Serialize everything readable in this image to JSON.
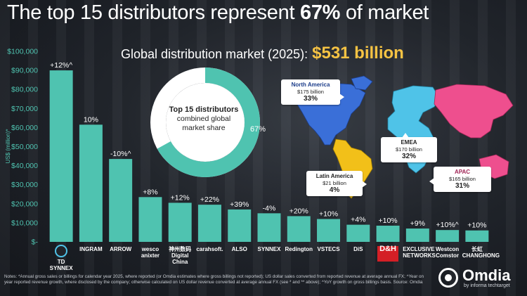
{
  "title_prefix": "The top 15 distributors represent ",
  "title_highlight": "67%",
  "title_suffix": " of market",
  "subtitle_label": "Global distribution market (2025):",
  "subtitle_amount": "$531 billion",
  "donut": {
    "title": "Top 15 distributors",
    "text": "combined global market share",
    "percent_label": "67%",
    "share": 0.67,
    "color": "#4fc3b0"
  },
  "regions": [
    {
      "name": "North America",
      "value": "$175 billion",
      "share": "33%",
      "color": "#3a6fd8"
    },
    {
      "name": "EMEA",
      "value": "$170 billion",
      "share": "32%",
      "color": "#4fc3e8"
    },
    {
      "name": "Latin America",
      "value": "$21 billion",
      "share": "4%",
      "color": "#f2c019"
    },
    {
      "name": "APAC",
      "value": "$165 billion",
      "share": "31%",
      "color": "#ee4f8e"
    }
  ],
  "chart_data": {
    "type": "bar",
    "ylabel": "US$ (million)*",
    "ylim": [
      0,
      100000
    ],
    "yticks": [
      "$-",
      "$10,000",
      "$20,000",
      "$30,000",
      "$40,000",
      "$50,000",
      "$60,000",
      "$70,000",
      "$80,000",
      "$90,000",
      "$100,000"
    ],
    "categories": [
      "TD SYNNEX",
      "INGRAM",
      "ARROW",
      "wesco anixter",
      "Digital China",
      "carahsoft",
      "ALSO",
      "SYNNEX",
      "Redington",
      "VSTECS",
      "DiS",
      "D&H",
      "EXCLUSIVE NETWORKS",
      "Westcon Comstor",
      "Changhong"
    ],
    "values": [
      90000,
      61500,
      43500,
      23500,
      20500,
      19500,
      17000,
      15000,
      13500,
      12000,
      9000,
      8500,
      7000,
      6200,
      6000
    ],
    "growth_labels": [
      "+12%^",
      "10%",
      "-10%^",
      "+8%",
      "+12%",
      "+22%",
      "+39%",
      "-4%",
      "+20%",
      "+10%",
      "+4%",
      "+10%",
      "+9%",
      "+10%^",
      "+10%"
    ],
    "bar_color": "#4fc3b0"
  },
  "logos": [
    "TD SYNNEX",
    "INGRAM",
    "ARROW",
    "wesco",
    "anixter",
    "神州数码 Digital China",
    "carahsoft.",
    "ALSO",
    "SYNNEX",
    "Redington",
    "VSTECS",
    "DiS",
    "D&H",
    "EXCLUSIVE NETWORKS",
    "Westcon Comstor",
    "长虹 CHANGHONG"
  ],
  "notes": "Notes: *Annual gross sales or billings for calendar year 2025, where reported (or Omdia estimates where gross billings not reported); US dollar sales converted from reported revenue at average annual FX; ^Year on year reported revenue growth, where disclosed by the company; otherwise calculated on US dollar revenue converted at average annual FX (see * and ** above); ^YoY growth on gross billings basis. Source: Omdia",
  "brand": {
    "name": "Omdia",
    "sub": "by informa techtarget"
  }
}
